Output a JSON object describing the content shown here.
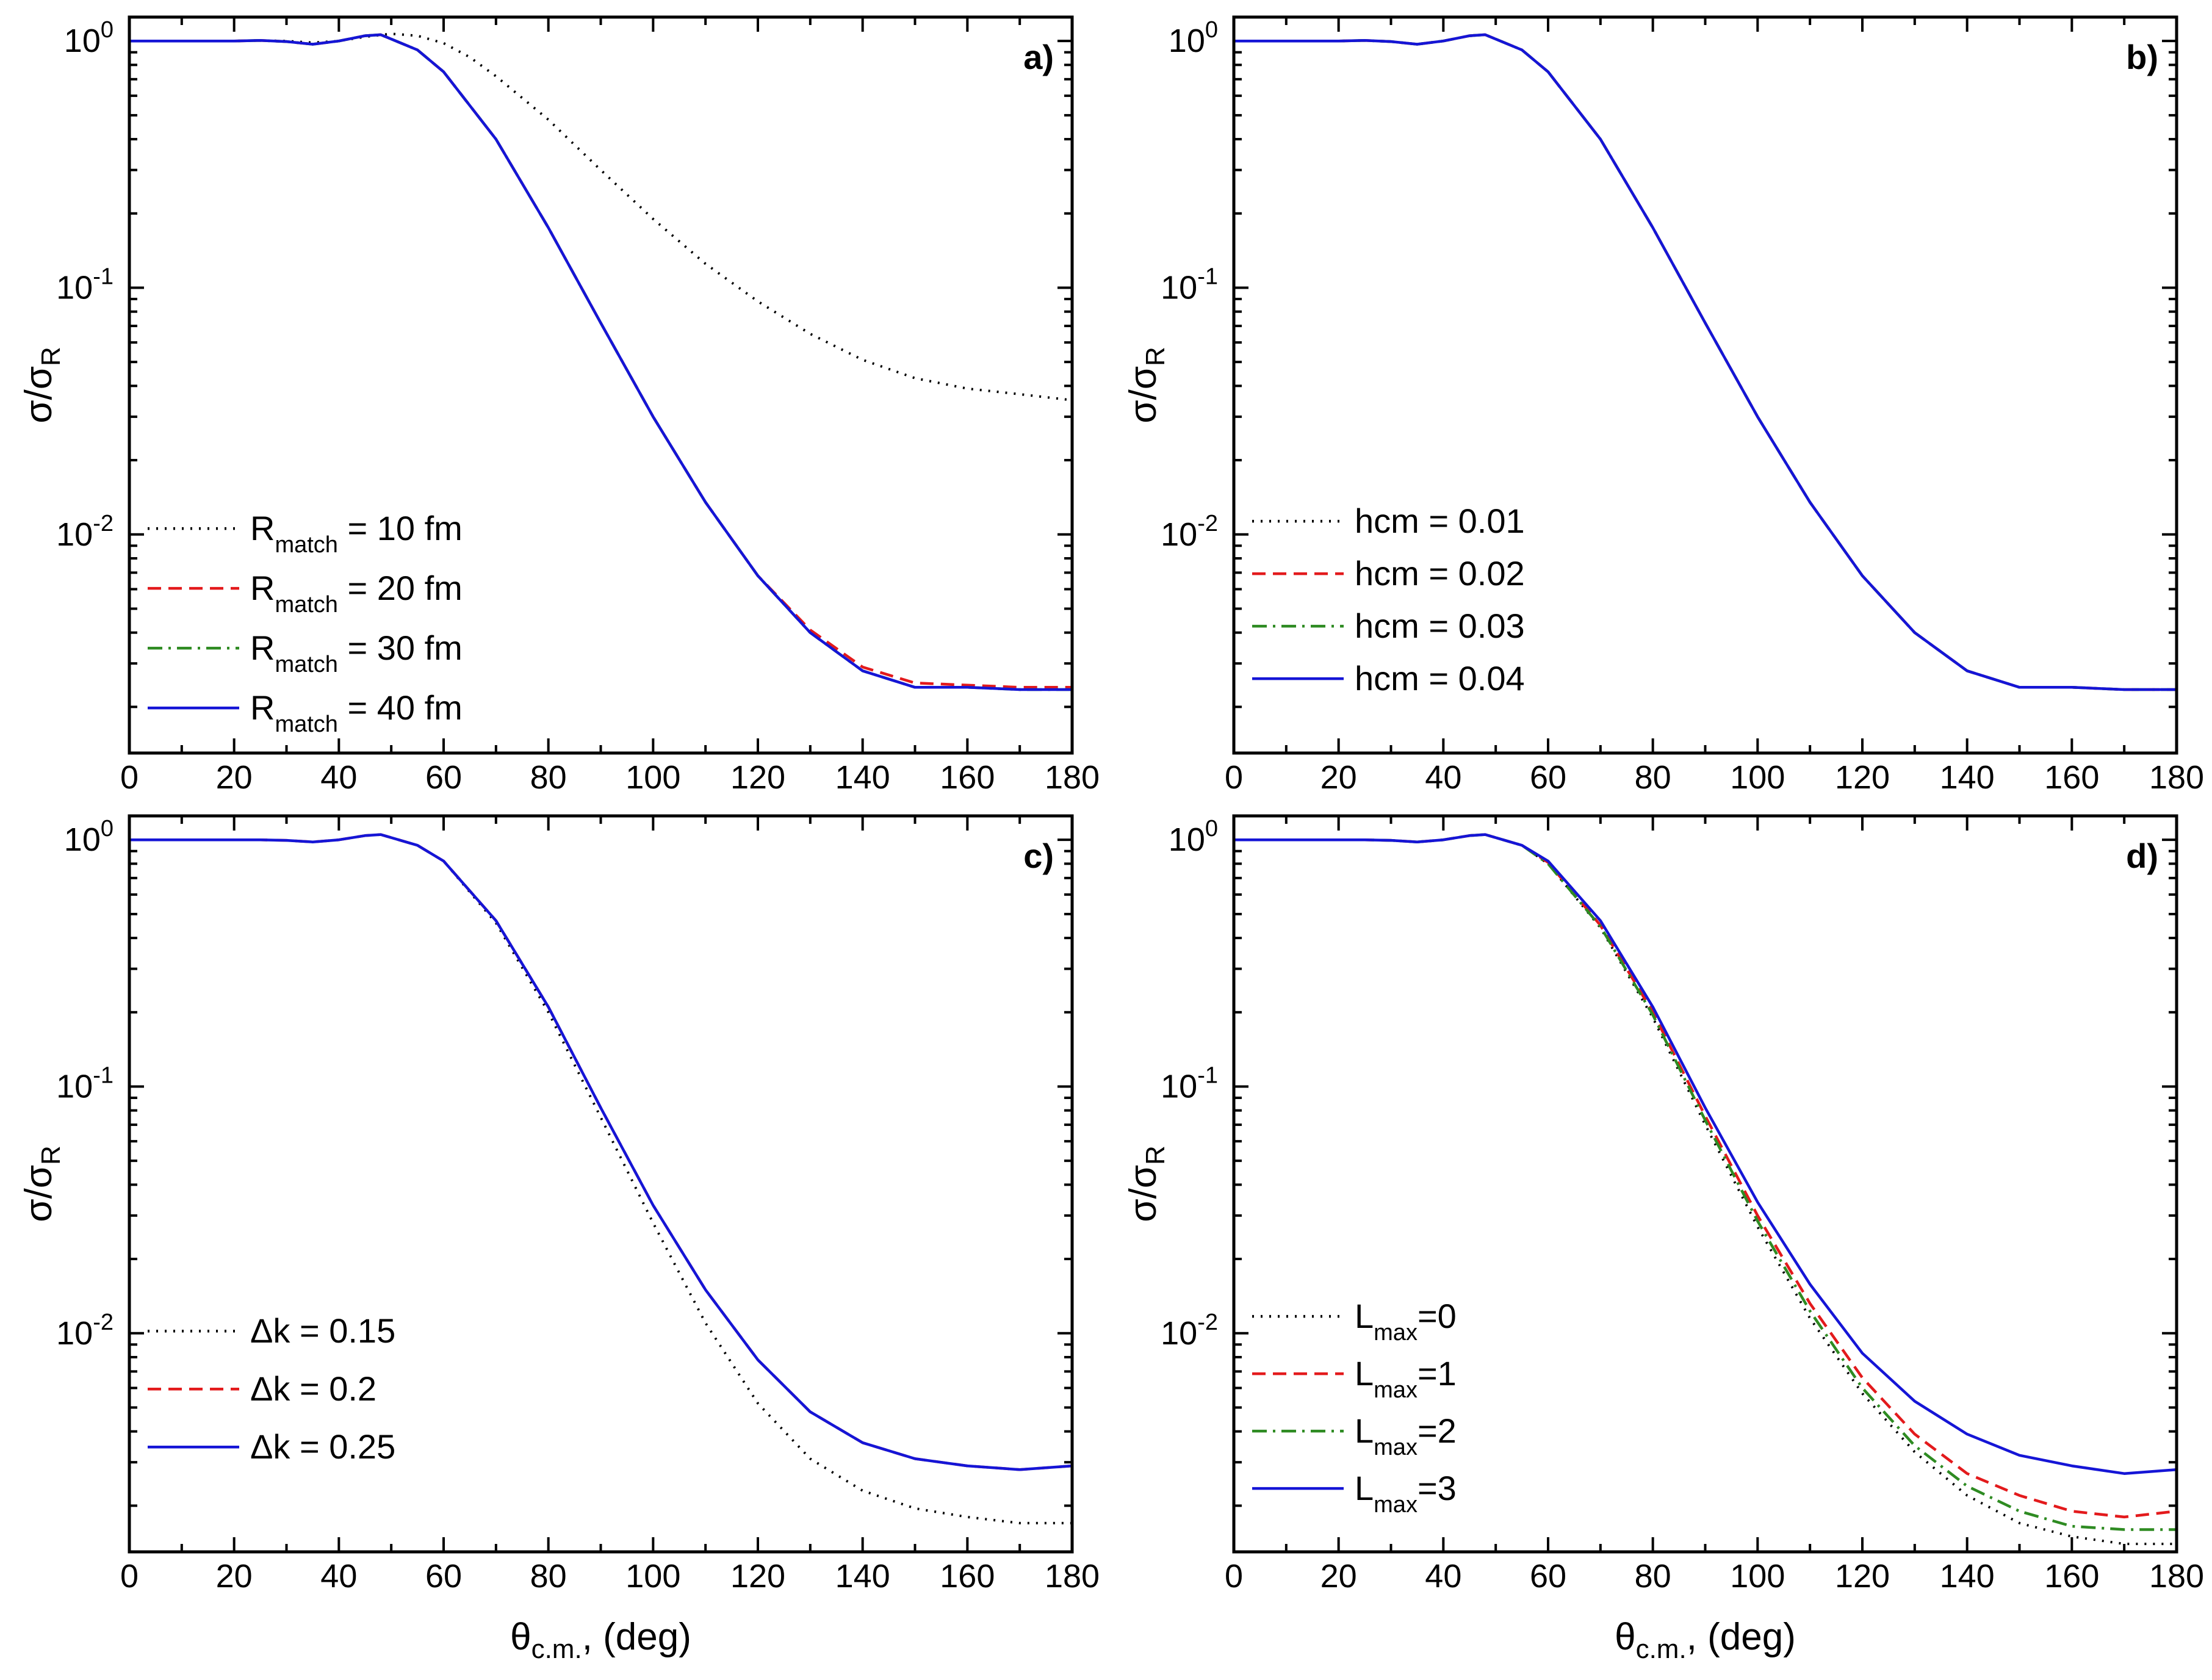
{
  "chart_data": [
    {
      "panel_label": "a)",
      "type": "line",
      "yscale": "log",
      "xlim": [
        0,
        180
      ],
      "ylim": [
        0.0013,
        1.25
      ],
      "x_ticks": [
        0,
        20,
        40,
        60,
        80,
        100,
        120,
        140,
        160,
        180
      ],
      "y_ticks": [
        "10-2",
        "10-1",
        "100"
      ],
      "ylabel": "σ/σR",
      "xlabel": "",
      "legend_position": "lower-left",
      "series": [
        {
          "name": "Rmatch = 10 fm",
          "name_main": "R",
          "name_sub": "match",
          "name_rest": " = 10 fm",
          "color": "#000000",
          "style": "dotted",
          "x": [
            0,
            10,
            20,
            25,
            30,
            35,
            40,
            45,
            50,
            55,
            60,
            65,
            70,
            80,
            90,
            100,
            110,
            120,
            130,
            140,
            150,
            160,
            170,
            180
          ],
          "y": [
            1.0,
            1.0,
            1.0,
            1.005,
            1.0,
            0.985,
            1.0,
            1.04,
            1.07,
            1.05,
            0.98,
            0.86,
            0.72,
            0.48,
            0.3,
            0.19,
            0.125,
            0.088,
            0.065,
            0.051,
            0.043,
            0.039,
            0.037,
            0.035
          ]
        },
        {
          "name": "Rmatch = 20 fm",
          "name_main": "R",
          "name_sub": "match",
          "name_rest": " = 20 fm",
          "color": "#e31a1c",
          "style": "dashed",
          "x": [
            0,
            10,
            20,
            25,
            30,
            35,
            40,
            45,
            48,
            55,
            60,
            70,
            80,
            90,
            100,
            110,
            120,
            130,
            140,
            150,
            160,
            170,
            180
          ],
          "y": [
            1.0,
            1.0,
            1.0,
            1.005,
            0.995,
            0.97,
            1.0,
            1.05,
            1.06,
            0.92,
            0.75,
            0.4,
            0.175,
            0.072,
            0.03,
            0.0135,
            0.0068,
            0.0041,
            0.0029,
            0.0025,
            0.00245,
            0.0024,
            0.0024
          ]
        },
        {
          "name": "Rmatch = 30 fm",
          "name_main": "R",
          "name_sub": "match",
          "name_rest": " = 30 fm",
          "color": "#2e8b22",
          "style": "dashdot",
          "x": [
            0,
            10,
            20,
            25,
            30,
            35,
            40,
            45,
            48,
            55,
            60,
            70,
            80,
            90,
            100,
            110,
            120,
            130,
            140,
            150,
            160,
            170,
            180
          ],
          "y": [
            1.0,
            1.0,
            1.0,
            1.005,
            0.995,
            0.97,
            1.0,
            1.05,
            1.06,
            0.92,
            0.75,
            0.4,
            0.175,
            0.072,
            0.03,
            0.0135,
            0.0068,
            0.004,
            0.0028,
            0.0024,
            0.0024,
            0.00235,
            0.00235
          ]
        },
        {
          "name": "Rmatch = 40 fm",
          "name_main": "R",
          "name_sub": "match",
          "name_rest": " = 40 fm",
          "color": "#1515d6",
          "style": "solid",
          "x": [
            0,
            10,
            20,
            25,
            30,
            35,
            40,
            45,
            48,
            55,
            60,
            70,
            80,
            90,
            100,
            110,
            120,
            130,
            140,
            150,
            160,
            170,
            180
          ],
          "y": [
            1.0,
            1.0,
            1.0,
            1.005,
            0.995,
            0.97,
            1.0,
            1.05,
            1.06,
            0.92,
            0.75,
            0.4,
            0.175,
            0.072,
            0.03,
            0.0135,
            0.0068,
            0.004,
            0.0028,
            0.0024,
            0.0024,
            0.00235,
            0.00235
          ]
        }
      ]
    },
    {
      "panel_label": "b)",
      "type": "line",
      "yscale": "log",
      "xlim": [
        0,
        180
      ],
      "ylim": [
        0.0013,
        1.25
      ],
      "x_ticks": [
        0,
        20,
        40,
        60,
        80,
        100,
        120,
        140,
        160,
        180
      ],
      "y_ticks": [
        "10-2",
        "10-1",
        "100"
      ],
      "ylabel": "σ/σR",
      "xlabel": "",
      "legend_position": "lower-left",
      "series": [
        {
          "name": "hcm = 0.01",
          "name_main": "hcm = 0.01",
          "name_sub": "",
          "name_rest": "",
          "color": "#000000",
          "style": "dotted",
          "x": [
            0,
            10,
            20,
            25,
            30,
            35,
            40,
            45,
            48,
            55,
            60,
            70,
            80,
            90,
            100,
            110,
            120,
            130,
            140,
            150,
            160,
            170,
            180
          ],
          "y": [
            1.0,
            1.0,
            1.0,
            1.005,
            0.995,
            0.97,
            1.0,
            1.05,
            1.06,
            0.92,
            0.75,
            0.4,
            0.175,
            0.072,
            0.03,
            0.0135,
            0.0068,
            0.004,
            0.0028,
            0.0024,
            0.0024,
            0.00235,
            0.00235
          ]
        },
        {
          "name": "hcm = 0.02",
          "name_main": "hcm = 0.02",
          "name_sub": "",
          "name_rest": "",
          "color": "#e31a1c",
          "style": "dashed",
          "x": [
            0,
            10,
            20,
            25,
            30,
            35,
            40,
            45,
            48,
            55,
            60,
            70,
            80,
            90,
            100,
            110,
            120,
            130,
            140,
            150,
            160,
            170,
            180
          ],
          "y": [
            1.0,
            1.0,
            1.0,
            1.005,
            0.995,
            0.97,
            1.0,
            1.05,
            1.06,
            0.92,
            0.75,
            0.4,
            0.175,
            0.072,
            0.03,
            0.0135,
            0.0068,
            0.004,
            0.0028,
            0.0024,
            0.0024,
            0.00235,
            0.00235
          ]
        },
        {
          "name": "hcm = 0.03",
          "name_main": "hcm = 0.03",
          "name_sub": "",
          "name_rest": "",
          "color": "#2e8b22",
          "style": "dashdot",
          "x": [
            0,
            10,
            20,
            25,
            30,
            35,
            40,
            45,
            48,
            55,
            60,
            70,
            80,
            90,
            100,
            110,
            120,
            130,
            140,
            150,
            160,
            170,
            180
          ],
          "y": [
            1.0,
            1.0,
            1.0,
            1.005,
            0.995,
            0.97,
            1.0,
            1.05,
            1.06,
            0.92,
            0.75,
            0.4,
            0.175,
            0.072,
            0.03,
            0.0135,
            0.0068,
            0.004,
            0.0028,
            0.0024,
            0.0024,
            0.00235,
            0.00235
          ]
        },
        {
          "name": "hcm = 0.04",
          "name_main": "hcm = 0.04",
          "name_sub": "",
          "name_rest": "",
          "color": "#1515d6",
          "style": "solid",
          "x": [
            0,
            10,
            20,
            25,
            30,
            35,
            40,
            45,
            48,
            55,
            60,
            70,
            80,
            90,
            100,
            110,
            120,
            130,
            140,
            150,
            160,
            170,
            180
          ],
          "y": [
            1.0,
            1.0,
            1.0,
            1.005,
            0.995,
            0.97,
            1.0,
            1.05,
            1.06,
            0.92,
            0.75,
            0.4,
            0.175,
            0.072,
            0.03,
            0.0135,
            0.0068,
            0.004,
            0.0028,
            0.0024,
            0.0024,
            0.00235,
            0.00235
          ]
        }
      ]
    },
    {
      "panel_label": "c)",
      "type": "line",
      "yscale": "log",
      "xlim": [
        0,
        180
      ],
      "ylim": [
        0.0013,
        1.25
      ],
      "x_ticks": [
        0,
        20,
        40,
        60,
        80,
        100,
        120,
        140,
        160,
        180
      ],
      "y_ticks": [
        "10-2",
        "10-1",
        "100"
      ],
      "ylabel": "σ/σR",
      "xlabel": "θc.m., (deg)",
      "legend_position": "lower-left",
      "series": [
        {
          "name": "Δk = 0.15",
          "name_main": "Δk = 0.15",
          "name_sub": "",
          "name_rest": "",
          "color": "#000000",
          "style": "dotted",
          "x": [
            0,
            10,
            20,
            25,
            30,
            35,
            40,
            45,
            48,
            55,
            60,
            70,
            80,
            90,
            100,
            110,
            120,
            130,
            140,
            150,
            160,
            170,
            180
          ],
          "y": [
            1.0,
            1.0,
            1.0,
            1.0,
            0.995,
            0.98,
            1.0,
            1.04,
            1.05,
            0.95,
            0.82,
            0.46,
            0.2,
            0.075,
            0.028,
            0.011,
            0.0052,
            0.0031,
            0.0023,
            0.00195,
            0.0018,
            0.0017,
            0.0017
          ]
        },
        {
          "name": "Δk = 0.2",
          "name_main": "Δk = 0.2",
          "name_sub": "",
          "name_rest": "",
          "color": "#e31a1c",
          "style": "dashed",
          "x": [
            0,
            10,
            20,
            25,
            30,
            35,
            40,
            45,
            48,
            55,
            60,
            70,
            80,
            90,
            100,
            110,
            120,
            130,
            140,
            150,
            160,
            170,
            180
          ],
          "y": [
            1.0,
            1.0,
            1.0,
            1.0,
            0.995,
            0.98,
            1.0,
            1.04,
            1.05,
            0.95,
            0.82,
            0.47,
            0.21,
            0.082,
            0.033,
            0.015,
            0.0078,
            0.0048,
            0.0036,
            0.0031,
            0.0029,
            0.0028,
            0.0029
          ]
        },
        {
          "name": "Δk = 0.25",
          "name_main": "Δk = 0.25",
          "name_sub": "",
          "name_rest": "",
          "color": "#1515d6",
          "style": "solid",
          "x": [
            0,
            10,
            20,
            25,
            30,
            35,
            40,
            45,
            48,
            55,
            60,
            70,
            80,
            90,
            100,
            110,
            120,
            130,
            140,
            150,
            160,
            170,
            180
          ],
          "y": [
            1.0,
            1.0,
            1.0,
            1.0,
            0.995,
            0.98,
            1.0,
            1.04,
            1.05,
            0.95,
            0.82,
            0.47,
            0.21,
            0.082,
            0.033,
            0.015,
            0.0078,
            0.0048,
            0.0036,
            0.0031,
            0.0029,
            0.0028,
            0.0029
          ]
        }
      ]
    },
    {
      "panel_label": "d)",
      "type": "line",
      "yscale": "log",
      "xlim": [
        0,
        180
      ],
      "ylim": [
        0.0013,
        1.25
      ],
      "x_ticks": [
        0,
        20,
        40,
        60,
        80,
        100,
        120,
        140,
        160,
        180
      ],
      "y_ticks": [
        "10-2",
        "10-1",
        "100"
      ],
      "ylabel": "σ/σR",
      "xlabel": "θc.m., (deg)",
      "legend_position": "lower-left",
      "series": [
        {
          "name": "Lmax=0",
          "name_main": "L",
          "name_sub": "max",
          "name_rest": "=0",
          "color": "#000000",
          "style": "dotted",
          "x": [
            0,
            10,
            20,
            25,
            30,
            35,
            40,
            45,
            48,
            55,
            60,
            70,
            80,
            90,
            100,
            110,
            120,
            130,
            140,
            150,
            160,
            170,
            180
          ],
          "y": [
            1.0,
            1.0,
            1.0,
            1.0,
            0.995,
            0.98,
            1.0,
            1.04,
            1.05,
            0.95,
            0.8,
            0.44,
            0.19,
            0.07,
            0.027,
            0.0115,
            0.0057,
            0.0033,
            0.0022,
            0.0017,
            0.0015,
            0.0014,
            0.0014
          ]
        },
        {
          "name": "Lmax=1",
          "name_main": "L",
          "name_sub": "max",
          "name_rest": "=1",
          "color": "#e31a1c",
          "style": "dashed",
          "x": [
            0,
            10,
            20,
            25,
            30,
            35,
            40,
            45,
            48,
            55,
            60,
            70,
            80,
            90,
            100,
            110,
            120,
            130,
            140,
            150,
            160,
            170,
            180
          ],
          "y": [
            1.0,
            1.0,
            1.0,
            1.0,
            0.995,
            0.98,
            1.0,
            1.04,
            1.05,
            0.95,
            0.81,
            0.45,
            0.2,
            0.076,
            0.03,
            0.0132,
            0.0066,
            0.0039,
            0.0027,
            0.0022,
            0.0019,
            0.0018,
            0.0019
          ]
        },
        {
          "name": "Lmax=2",
          "name_main": "L",
          "name_sub": "max",
          "name_rest": "=2",
          "color": "#2e8b22",
          "style": "dashdot",
          "x": [
            0,
            10,
            20,
            25,
            30,
            35,
            40,
            45,
            48,
            55,
            60,
            70,
            80,
            90,
            100,
            110,
            120,
            130,
            140,
            150,
            160,
            170,
            180
          ],
          "y": [
            1.0,
            1.0,
            1.0,
            1.0,
            0.995,
            0.98,
            1.0,
            1.04,
            1.05,
            0.95,
            0.8,
            0.445,
            0.195,
            0.073,
            0.0285,
            0.0123,
            0.006,
            0.0035,
            0.0024,
            0.0019,
            0.00165,
            0.0016,
            0.0016
          ]
        },
        {
          "name": "Lmax=3",
          "name_main": "L",
          "name_sub": "max",
          "name_rest": "=3",
          "color": "#1515d6",
          "style": "solid",
          "x": [
            0,
            10,
            20,
            25,
            30,
            35,
            40,
            45,
            48,
            55,
            60,
            70,
            80,
            90,
            100,
            110,
            120,
            130,
            140,
            150,
            160,
            170,
            180
          ],
          "y": [
            1.0,
            1.0,
            1.0,
            1.0,
            0.995,
            0.98,
            1.0,
            1.04,
            1.05,
            0.95,
            0.82,
            0.47,
            0.21,
            0.082,
            0.034,
            0.0158,
            0.0083,
            0.0053,
            0.0039,
            0.0032,
            0.0029,
            0.0027,
            0.0028
          ]
        }
      ]
    }
  ]
}
